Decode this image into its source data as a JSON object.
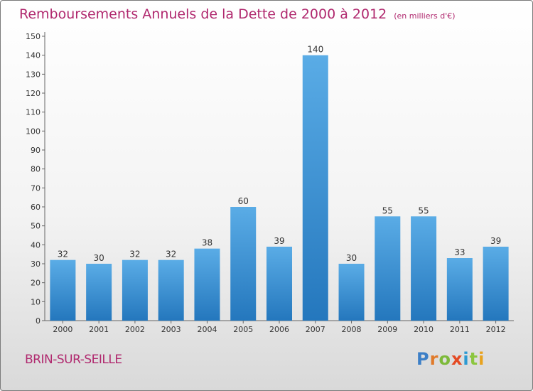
{
  "title": "Remboursements Annuels de la Dette de 2000 à 2012",
  "subtitle": "(en milliers d'€)",
  "commune": "BRIN-SUR-SEILLE",
  "logo": {
    "p": "P",
    "r": "r",
    "o": "o",
    "x": "x",
    "i1": "i",
    "t": "t",
    "i2": "i"
  },
  "colors": {
    "bar_top": "#5aace6",
    "bar_bottom": "#2477bd",
    "title": "#b0286e"
  },
  "chart_data": {
    "type": "bar",
    "title": "Remboursements Annuels de la Dette de 2000 à 2012",
    "subtitle": "(en milliers d'€)",
    "categories": [
      "2000",
      "2001",
      "2002",
      "2003",
      "2004",
      "2005",
      "2006",
      "2007",
      "2008",
      "2009",
      "2010",
      "2011",
      "2012"
    ],
    "values": [
      32,
      30,
      32,
      32,
      38,
      60,
      39,
      140,
      30,
      55,
      55,
      33,
      39
    ],
    "ylim": [
      0,
      150
    ],
    "yticks": [
      0,
      10,
      20,
      30,
      40,
      50,
      60,
      70,
      80,
      90,
      100,
      110,
      120,
      130,
      140,
      150
    ],
    "grid": false,
    "legend": "none"
  }
}
